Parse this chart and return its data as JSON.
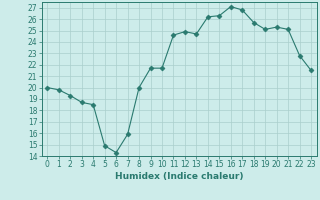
{
  "xlabel": "Humidex (Indice chaleur)",
  "x": [
    0,
    1,
    2,
    3,
    4,
    5,
    6,
    7,
    8,
    9,
    10,
    11,
    12,
    13,
    14,
    15,
    16,
    17,
    18,
    19,
    20,
    21,
    22,
    23
  ],
  "y": [
    20.0,
    19.8,
    19.3,
    18.7,
    18.5,
    14.9,
    14.3,
    15.9,
    20.0,
    21.7,
    21.7,
    24.6,
    24.9,
    24.7,
    26.2,
    26.3,
    27.1,
    26.8,
    25.7,
    25.1,
    25.3,
    25.1,
    22.8,
    21.5
  ],
  "line_color": "#2a7a6f",
  "marker": "D",
  "marker_size": 2.5,
  "bg_color": "#cdecea",
  "grid_color": "#aacfcc",
  "ylim": [
    14,
    27.5
  ],
  "yticks": [
    14,
    15,
    16,
    17,
    18,
    19,
    20,
    21,
    22,
    23,
    24,
    25,
    26,
    27
  ],
  "xticks": [
    0,
    1,
    2,
    3,
    4,
    5,
    6,
    7,
    8,
    9,
    10,
    11,
    12,
    13,
    14,
    15,
    16,
    17,
    18,
    19,
    20,
    21,
    22,
    23
  ],
  "tick_label_fontsize": 5.5,
  "xlabel_fontsize": 6.5
}
